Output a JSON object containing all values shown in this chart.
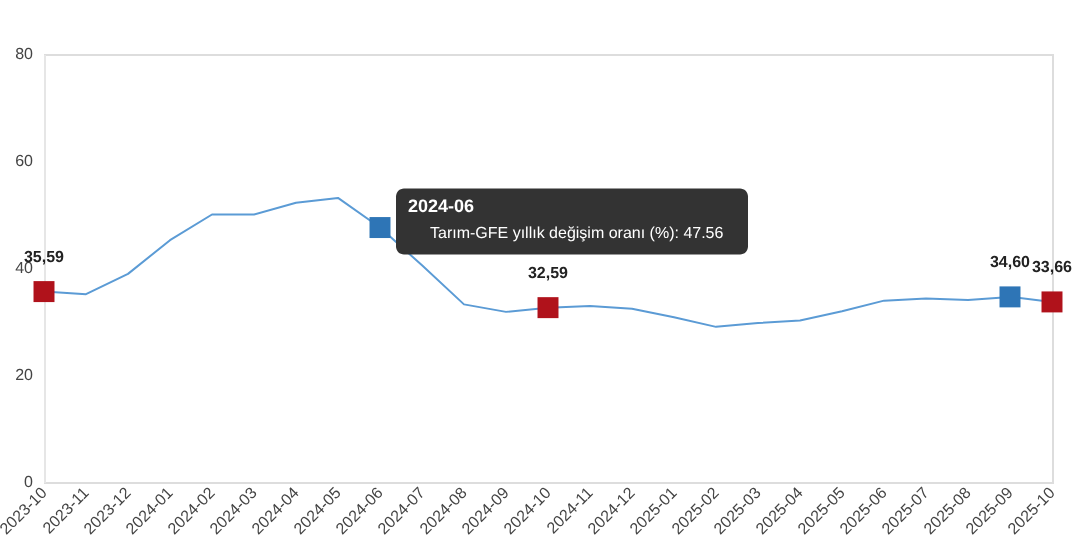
{
  "chart_data": {
    "type": "line",
    "categories": [
      "2023-10",
      "2023-11",
      "2023-12",
      "2024-01",
      "2024-02",
      "2024-03",
      "2024-04",
      "2024-05",
      "2024-06",
      "2024-07",
      "2024-08",
      "2024-09",
      "2024-10",
      "2024-11",
      "2024-12",
      "2025-01",
      "2025-02",
      "2025-03",
      "2025-04",
      "2025-05",
      "2025-06",
      "2025-07",
      "2025-08",
      "2025-09",
      "2025-10"
    ],
    "values": [
      35.59,
      35.1,
      38.9,
      45.2,
      50.0,
      50.0,
      52.2,
      53.1,
      47.56,
      40.5,
      33.2,
      31.8,
      32.59,
      32.9,
      32.4,
      30.8,
      29.0,
      29.7,
      30.2,
      31.9,
      33.9,
      34.3,
      34.0,
      34.6,
      33.66
    ],
    "color": "#5b9bd5",
    "colors": [
      "#b0121b",
      null,
      null,
      null,
      null,
      null,
      null,
      null,
      "#2e75b6",
      null,
      null,
      null,
      "#b0121b",
      null,
      null,
      null,
      null,
      null,
      null,
      null,
      null,
      null,
      null,
      "#2e75b6",
      "#b0121b"
    ],
    "value_labels": [
      "35,59",
      null,
      null,
      null,
      null,
      null,
      null,
      null,
      null,
      null,
      null,
      null,
      "32,59",
      null,
      null,
      null,
      null,
      null,
      null,
      null,
      null,
      null,
      null,
      "34,60",
      "33,66"
    ],
    "ylim": [
      0,
      80
    ],
    "yticks": [
      0,
      20,
      40,
      60,
      80
    ],
    "grid": false,
    "annotations": [
      {
        "text": "2024-06",
        "x": "2024-06",
        "y": 47.56
      },
      "Tarım-GFE yıllık değişim oranı (%): 47.56"
    ]
  }
}
